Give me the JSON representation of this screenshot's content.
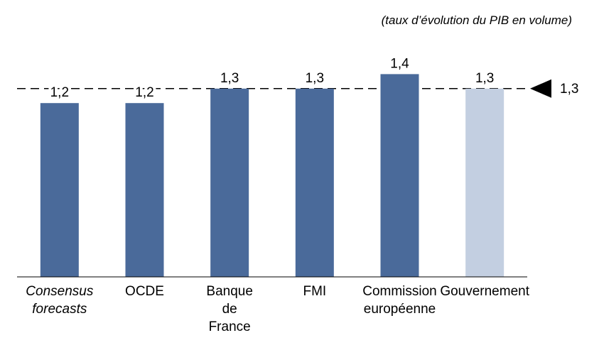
{
  "chart_data": {
    "type": "bar",
    "subtitle": "(taux d’évolution du PIB en volume)",
    "categories": [
      "Consensus forecasts",
      "OCDE",
      "Banque de France",
      "FMI",
      "Commission européenne",
      "Gouvernement"
    ],
    "values": [
      1.2,
      1.2,
      1.3,
      1.3,
      1.4,
      1.3
    ],
    "value_labels": [
      "1,2",
      "1,2",
      "1,3",
      "1,3",
      "1,4",
      "1,3"
    ],
    "colors": [
      "#4a6a9a",
      "#4a6a9a",
      "#4a6a9a",
      "#4a6a9a",
      "#4a6a9a",
      "#c3cfe1"
    ],
    "ylim": [
      0,
      1.5
    ],
    "reference_line": {
      "value": 1.3,
      "label": "1,3"
    }
  }
}
